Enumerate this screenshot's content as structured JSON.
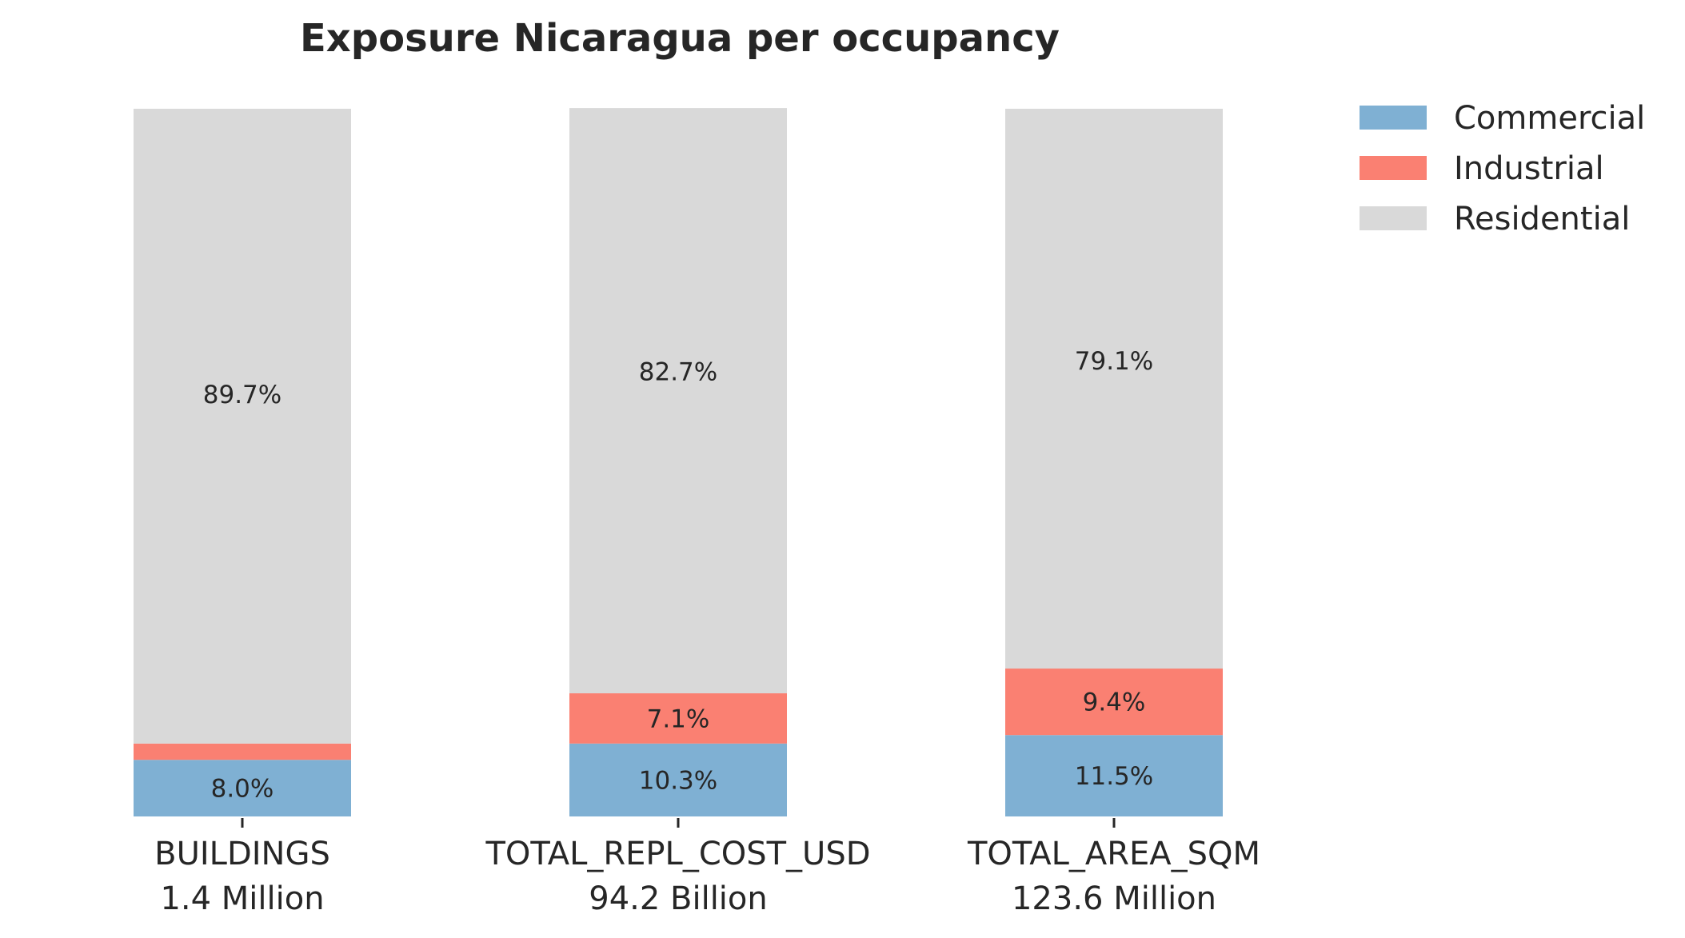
{
  "chart_data": {
    "type": "bar",
    "stacked": true,
    "title": "Exposure Nicaragua per occupancy",
    "categories": [
      "BUILDINGS",
      "TOTAL_REPL_COST_USD",
      "TOTAL_AREA_SQM"
    ],
    "category_totals": [
      "1.4 Million",
      "94.2 Billion",
      "123.6 Million"
    ],
    "ylim": [
      0,
      100
    ],
    "grid": false,
    "legend_position": "top-right, outside plot",
    "series": [
      {
        "name": "Commercial",
        "color": "#7fb0d3",
        "values": [
          8.0,
          10.3,
          11.5
        ],
        "labels": [
          "8.0%",
          "10.3%",
          "11.5%"
        ]
      },
      {
        "name": "Industrial",
        "color": "#fa8072",
        "values": [
          2.3,
          7.1,
          9.4
        ],
        "labels": [
          "",
          "7.1%",
          "9.4%"
        ]
      },
      {
        "name": "Residential",
        "color": "#d9d9d9",
        "values": [
          89.7,
          82.7,
          79.1
        ],
        "labels": [
          "89.7%",
          "82.7%",
          "79.1%"
        ]
      }
    ]
  }
}
